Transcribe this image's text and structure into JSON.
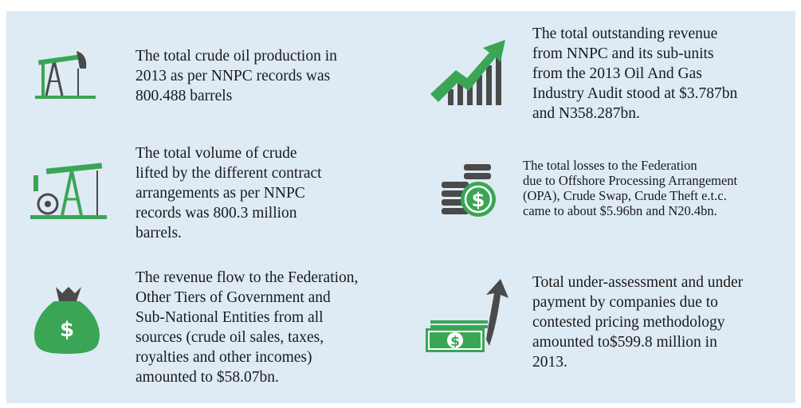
{
  "items": [
    {
      "lines": [
        "The total crude oil production in",
        "2013 as per NNPC records was",
        "800.488 barrels"
      ]
    },
    {
      "lines": [
        "The total volume of crude",
        "lifted by the different contract",
        "arrangements as per NNPC",
        "records was 800.3 million",
        "barrels."
      ]
    },
    {
      "lines": [
        "The revenue flow to the Federation,",
        "Other Tiers of Government and",
        "Sub-National Entities from all",
        "sources (crude oil sales, taxes,",
        "royalties and other incomes)",
        "amounted to $58.07bn."
      ]
    },
    {
      "lines": [
        "The total outstanding revenue",
        "from NNPC and its sub-units",
        "from the 2013 Oil And Gas",
        "Industry Audit stood at $3.787bn",
        "and N358.287bn."
      ]
    },
    {
      "lines": [
        "The total losses to the Federation",
        "due to Offshore Processing Arrangement",
        "(OPA), Crude Swap, Crude Theft e.t.c.",
        "came to about $5.96bn and N20.4bn."
      ]
    },
    {
      "lines": [
        "Total under-assessment and under",
        "payment by companies due to",
        "contested pricing methodology",
        "amounted to$599.8 million in",
        "2013."
      ]
    }
  ]
}
